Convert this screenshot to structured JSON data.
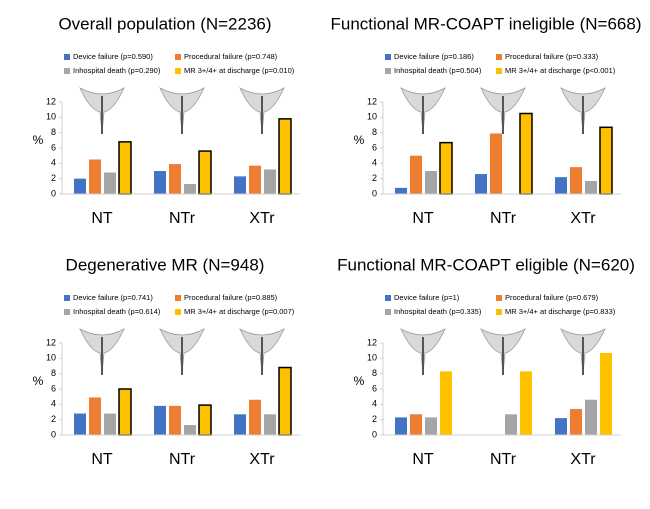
{
  "chart_data": [
    {
      "type": "bar",
      "title": "Overall population (N=2236)",
      "y_label": "%",
      "categories": [
        "NT",
        "NTr",
        "XTr"
      ],
      "ylim": [
        0,
        12
      ],
      "yticks": [
        0,
        2,
        4,
        6,
        8,
        10,
        12
      ],
      "series": [
        {
          "name": "Device failure (p=0.590)",
          "color": "#4472c4",
          "values": [
            2.0,
            3.0,
            2.3
          ]
        },
        {
          "name": "Procedural failure (p=0.748)",
          "color": "#ed7d31",
          "values": [
            4.5,
            3.9,
            3.7
          ]
        },
        {
          "name": "Inhospital death (p=0.290)",
          "color": "#a5a5a5",
          "values": [
            2.8,
            1.3,
            3.2
          ]
        },
        {
          "name": "MR 3+/4+ at discharge (p=0.010)",
          "color": "#ffc000",
          "edgecolor": "#000000",
          "values": [
            6.8,
            5.6,
            9.8
          ]
        }
      ]
    },
    {
      "type": "bar",
      "title": "Functional MR-COAPT ineligible (N=668)",
      "y_label": "%",
      "categories": [
        "NT",
        "NTr",
        "XTr"
      ],
      "ylim": [
        0,
        12
      ],
      "yticks": [
        0,
        2,
        4,
        6,
        8,
        10,
        12
      ],
      "series": [
        {
          "name": "Device failure (p=0.186)",
          "color": "#4472c4",
          "values": [
            0.8,
            2.6,
            2.2
          ]
        },
        {
          "name": "Procedural failure (p=0.333)",
          "color": "#ed7d31",
          "values": [
            5.0,
            7.9,
            3.5
          ]
        },
        {
          "name": "Inhospital death (p=0.504)",
          "color": "#a5a5a5",
          "values": [
            3.0,
            0,
            1.7
          ]
        },
        {
          "name": "MR 3+/4+ at discharge (p<0.001)",
          "color": "#ffc000",
          "edgecolor": "#000000",
          "values": [
            6.7,
            10.5,
            8.7
          ]
        }
      ]
    },
    {
      "type": "bar",
      "title": "Degenerative MR (N=948)",
      "y_label": "%",
      "categories": [
        "NT",
        "NTr",
        "XTr"
      ],
      "ylim": [
        0,
        12
      ],
      "yticks": [
        0,
        2,
        4,
        6,
        8,
        10,
        12
      ],
      "series": [
        {
          "name": "Device failure (p=0.741)",
          "color": "#4472c4",
          "values": [
            2.8,
            3.8,
            2.7
          ]
        },
        {
          "name": "Procedural failure (p=0.885)",
          "color": "#ed7d31",
          "values": [
            4.9,
            3.8,
            4.6
          ]
        },
        {
          "name": "Inhospital death (p=0.614)",
          "color": "#a5a5a5",
          "values": [
            2.8,
            1.3,
            2.7
          ]
        },
        {
          "name": "MR 3+/4+ at discharge (p=0.007)",
          "color": "#ffc000",
          "edgecolor": "#000000",
          "values": [
            6.0,
            3.9,
            8.8
          ]
        }
      ]
    },
    {
      "type": "bar",
      "title": "Functional MR-COAPT eligible (N=620)",
      "y_label": "%",
      "categories": [
        "NT",
        "NTr",
        "XTr"
      ],
      "ylim": [
        0,
        12
      ],
      "yticks": [
        0,
        2,
        4,
        6,
        8,
        10,
        12
      ],
      "series": [
        {
          "name": "Device failure (p=1)",
          "color": "#4472c4",
          "values": [
            2.3,
            0,
            2.2
          ]
        },
        {
          "name": "Procedural failure (p=0.679)",
          "color": "#ed7d31",
          "values": [
            2.7,
            0,
            3.4
          ]
        },
        {
          "name": "Inhospital death (p=0.335)",
          "color": "#a5a5a5",
          "values": [
            2.3,
            2.7,
            4.6
          ]
        },
        {
          "name": "MR 3+/4+ at discharge (p=0.833)",
          "color": "#ffc000",
          "values": [
            8.3,
            8.3,
            10.7
          ]
        }
      ]
    }
  ]
}
